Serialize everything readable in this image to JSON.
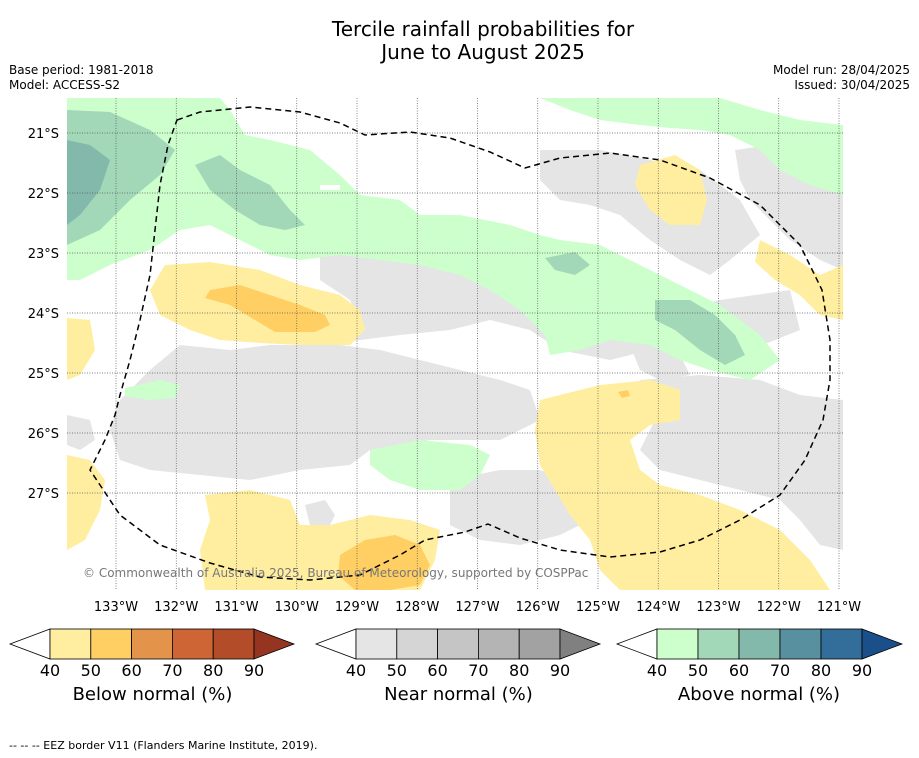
{
  "title_line1": "Tercile rainfall probabilities for",
  "title_line2": "June to August 2025",
  "base_period": "Base period: 1981-2018",
  "model": "Model: ACCESS-S2",
  "model_run": "Model run: 28/04/2025",
  "issued": "Issued: 30/04/2025",
  "copyright": "© Commonwealth of Australia 2025, Bureau of Meteorology, supported by COSPPac",
  "footer": "--  --  -- EEZ border V11 (Flanders Marine Institute, 2019).",
  "lat_labels": [
    "21°S",
    "22°S",
    "23°S",
    "24°S",
    "25°S",
    "26°S",
    "27°S"
  ],
  "lon_labels": [
    "133°W",
    "132°W",
    "131°W",
    "130°W",
    "129°W",
    "128°W",
    "127°W",
    "126°W",
    "125°W",
    "124°W",
    "123°W",
    "122°W",
    "121°W"
  ],
  "colorbars": {
    "below": {
      "label": "Below normal (%)",
      "ticks": [
        "40",
        "50",
        "60",
        "70",
        "80",
        "90"
      ],
      "colors": [
        "#ffeea0",
        "#ffcf63",
        "#e3944a",
        "#cd6535",
        "#b34c28",
        "#943421"
      ]
    },
    "near": {
      "label": "Near normal (%)",
      "ticks": [
        "40",
        "50",
        "60",
        "70",
        "80",
        "90"
      ],
      "colors": [
        "#e5e5e5",
        "#d5d5d5",
        "#c5c5c5",
        "#b4b4b4",
        "#a2a2a2",
        "#808080"
      ]
    },
    "above": {
      "label": "Above normal (%)",
      "ticks": [
        "40",
        "50",
        "60",
        "70",
        "80",
        "90"
      ],
      "colors": [
        "#ccffcc",
        "#a2d8b8",
        "#82b9ab",
        "#5990a0",
        "#336e9a",
        "#1a4f8a"
      ]
    }
  }
}
